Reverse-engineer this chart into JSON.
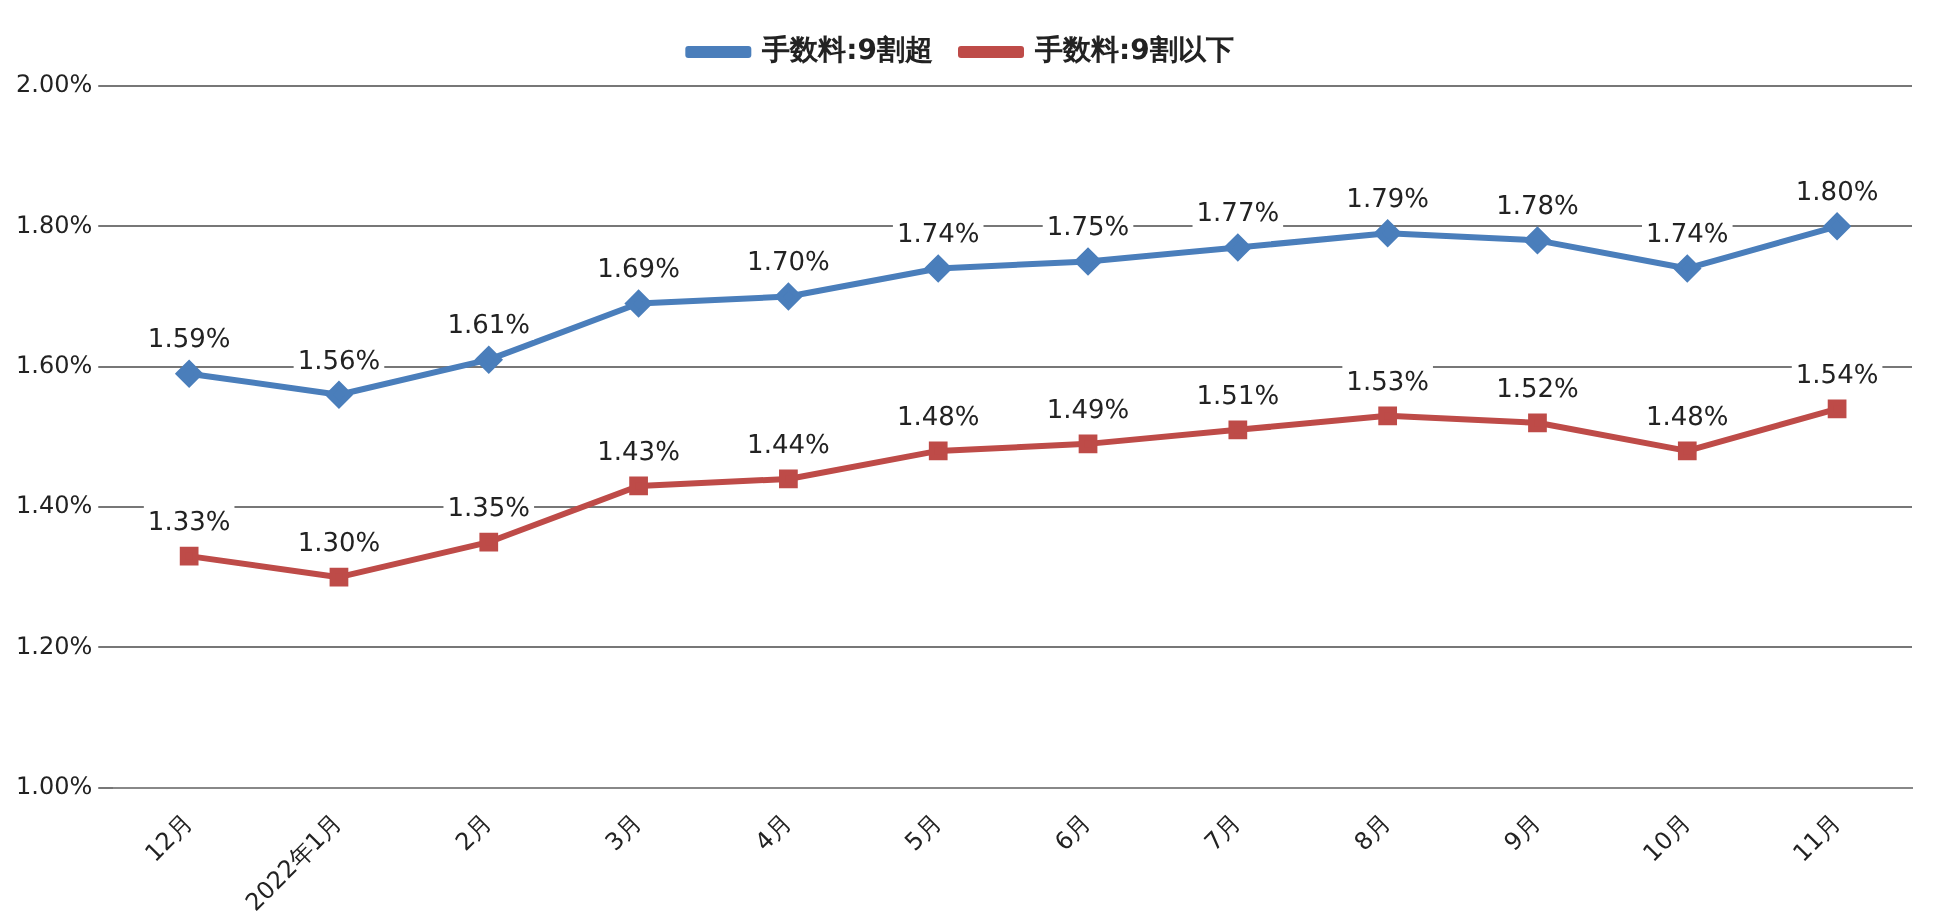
{
  "chart_data": {
    "type": "line",
    "categories": [
      "12月",
      "2022年1月",
      "2月",
      "3月",
      "4月",
      "5月",
      "6月",
      "7月",
      "8月",
      "9月",
      "10月",
      "11月"
    ],
    "series": [
      {
        "name": "手数料:9割超",
        "color": "#4a7ebb",
        "marker": "diamond",
        "values": [
          1.59,
          1.56,
          1.61,
          1.69,
          1.7,
          1.74,
          1.75,
          1.77,
          1.79,
          1.78,
          1.74,
          1.8
        ],
        "value_labels": [
          "1.59%",
          "1.56%",
          "1.61%",
          "1.69%",
          "1.70%",
          "1.74%",
          "1.75%",
          "1.77%",
          "1.79%",
          "1.78%",
          "1.74%",
          "1.80%"
        ]
      },
      {
        "name": "手数料:9割以下",
        "color": "#be4b48",
        "marker": "square",
        "values": [
          1.33,
          1.3,
          1.35,
          1.43,
          1.44,
          1.48,
          1.49,
          1.51,
          1.53,
          1.52,
          1.48,
          1.54
        ],
        "value_labels": [
          "1.33%",
          "1.30%",
          "1.35%",
          "1.43%",
          "1.44%",
          "1.48%",
          "1.49%",
          "1.51%",
          "1.53%",
          "1.52%",
          "1.48%",
          "1.54%"
        ]
      }
    ],
    "ylim": [
      1.0,
      2.0
    ],
    "yticks": [
      {
        "value": 1.0,
        "label": "1.00%"
      },
      {
        "value": 1.2,
        "label": "1.20%"
      },
      {
        "value": 1.4,
        "label": "1.40%"
      },
      {
        "value": 1.6,
        "label": "1.60%"
      },
      {
        "value": 1.8,
        "label": "1.80%"
      },
      {
        "value": 2.0,
        "label": "2.00%"
      }
    ],
    "grid": "y",
    "legend": "top",
    "line_style": "solid"
  }
}
